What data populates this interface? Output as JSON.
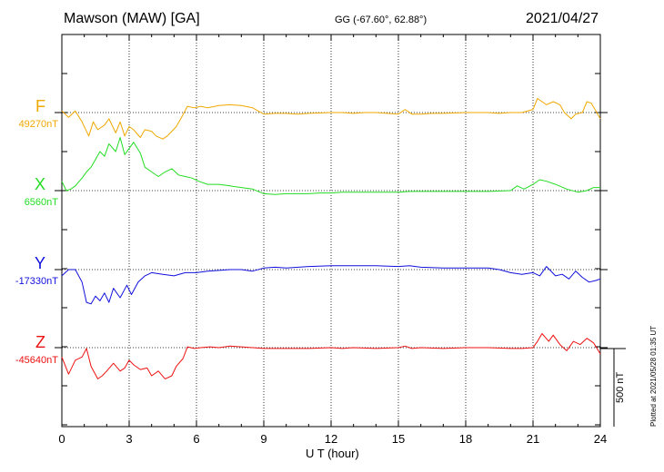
{
  "header": {
    "station": "Mawson (MAW)  [GA]",
    "coords": "GG (-67.60°,  62.88°)",
    "date": "2021/04/27"
  },
  "components": [
    {
      "name": "F",
      "base": "49270nT",
      "color": "#f0a800"
    },
    {
      "name": "X",
      "base": "6560nT",
      "color": "#22dd22"
    },
    {
      "name": "Y",
      "base": "-17330nT",
      "color": "#1010dd"
    },
    {
      "name": "Z",
      "base": "-45640nT",
      "color": "#ee1111"
    }
  ],
  "scale_bar": "500 nT",
  "plotted_note": "Plotted at 2021/05/28 01:35 UT",
  "chart_data": {
    "type": "line",
    "title": "Mawson (MAW)  [GA]",
    "xlabel": "U T (hour)",
    "ylabel": "",
    "xlim": [
      0,
      24
    ],
    "x_ticks": [
      0,
      3,
      6,
      9,
      12,
      15,
      18,
      21,
      24
    ],
    "scale_nT": 500,
    "grid": "dotted vertical every 3 h, dotted baseline per component",
    "series": [
      {
        "name": "F",
        "baseline_nT": 49270,
        "color": "#f0a800",
        "points": [
          [
            0,
            10
          ],
          [
            0.3,
            -30
          ],
          [
            0.6,
            10
          ],
          [
            0.9,
            -60
          ],
          [
            1.2,
            -150
          ],
          [
            1.4,
            -60
          ],
          [
            1.6,
            -110
          ],
          [
            1.9,
            -80
          ],
          [
            2.1,
            -40
          ],
          [
            2.4,
            -130
          ],
          [
            2.6,
            -60
          ],
          [
            2.8,
            -150
          ],
          [
            3.0,
            -90
          ],
          [
            3.2,
            -110
          ],
          [
            3.5,
            -160
          ],
          [
            3.7,
            -110
          ],
          [
            4.0,
            -120
          ],
          [
            4.2,
            -150
          ],
          [
            4.5,
            -170
          ],
          [
            4.7,
            -150
          ],
          [
            4.9,
            -120
          ],
          [
            5.1,
            -90
          ],
          [
            5.3,
            -40
          ],
          [
            5.6,
            40
          ],
          [
            5.9,
            30
          ],
          [
            6.2,
            40
          ],
          [
            6.5,
            30
          ],
          [
            7.0,
            45
          ],
          [
            7.5,
            50
          ],
          [
            8.0,
            45
          ],
          [
            8.5,
            30
          ],
          [
            9.0,
            -10
          ],
          [
            9.5,
            -5
          ],
          [
            10.0,
            -5
          ],
          [
            10.5,
            -10
          ],
          [
            11.0,
            -5
          ],
          [
            12.0,
            0
          ],
          [
            12.5,
            0
          ],
          [
            13.0,
            -5
          ],
          [
            13.5,
            0
          ],
          [
            14.0,
            0
          ],
          [
            14.5,
            -5
          ],
          [
            15.0,
            -10
          ],
          [
            15.3,
            20
          ],
          [
            15.6,
            -10
          ],
          [
            16.0,
            -10
          ],
          [
            16.5,
            -5
          ],
          [
            17.0,
            -5
          ],
          [
            18.0,
            0
          ],
          [
            19.0,
            0
          ],
          [
            19.5,
            -5
          ],
          [
            20.0,
            0
          ],
          [
            20.5,
            0
          ],
          [
            21.0,
            20
          ],
          [
            21.2,
            90
          ],
          [
            21.4,
            70
          ],
          [
            21.6,
            50
          ],
          [
            21.9,
            70
          ],
          [
            22.2,
            50
          ],
          [
            22.4,
            0
          ],
          [
            22.7,
            -40
          ],
          [
            22.9,
            -10
          ],
          [
            23.2,
            0
          ],
          [
            23.4,
            70
          ],
          [
            23.6,
            60
          ],
          [
            23.8,
            10
          ],
          [
            24.0,
            -40
          ]
        ]
      },
      {
        "name": "X",
        "baseline_nT": 6560,
        "color": "#22dd22",
        "points": [
          [
            0,
            60
          ],
          [
            0.2,
            0
          ],
          [
            0.4,
            10
          ],
          [
            0.6,
            30
          ],
          [
            0.9,
            80
          ],
          [
            1.1,
            120
          ],
          [
            1.3,
            150
          ],
          [
            1.5,
            200
          ],
          [
            1.7,
            250
          ],
          [
            1.9,
            220
          ],
          [
            2.1,
            300
          ],
          [
            2.4,
            250
          ],
          [
            2.6,
            340
          ],
          [
            2.8,
            230
          ],
          [
            3.0,
            270
          ],
          [
            3.2,
            310
          ],
          [
            3.5,
            240
          ],
          [
            3.7,
            150
          ],
          [
            4.0,
            120
          ],
          [
            4.3,
            90
          ],
          [
            4.6,
            120
          ],
          [
            4.9,
            140
          ],
          [
            5.2,
            100
          ],
          [
            5.5,
            90
          ],
          [
            5.8,
            80
          ],
          [
            6.1,
            60
          ],
          [
            6.5,
            40
          ],
          [
            7.0,
            40
          ],
          [
            7.5,
            30
          ],
          [
            8.0,
            20
          ],
          [
            8.5,
            10
          ],
          [
            9.0,
            -20
          ],
          [
            9.5,
            -25
          ],
          [
            10.0,
            -20
          ],
          [
            10.5,
            -20
          ],
          [
            11.0,
            -20
          ],
          [
            11.5,
            -15
          ],
          [
            12.0,
            -15
          ],
          [
            12.5,
            -10
          ],
          [
            13.0,
            -10
          ],
          [
            14.0,
            -10
          ],
          [
            15.0,
            -10
          ],
          [
            15.5,
            -5
          ],
          [
            16.0,
            -5
          ],
          [
            17.0,
            -5
          ],
          [
            18.0,
            -5
          ],
          [
            19.0,
            -5
          ],
          [
            20.0,
            0
          ],
          [
            20.3,
            30
          ],
          [
            20.6,
            10
          ],
          [
            21.0,
            40
          ],
          [
            21.3,
            70
          ],
          [
            21.6,
            60
          ],
          [
            22.0,
            40
          ],
          [
            22.5,
            10
          ],
          [
            23.0,
            -10
          ],
          [
            23.4,
            0
          ],
          [
            23.7,
            20
          ],
          [
            24.0,
            20
          ]
        ]
      },
      {
        "name": "Y",
        "baseline_nT": -17330,
        "color": "#1010dd",
        "points": [
          [
            0,
            -40
          ],
          [
            0.3,
            0
          ],
          [
            0.6,
            0
          ],
          [
            0.9,
            -80
          ],
          [
            1.1,
            -210
          ],
          [
            1.3,
            -220
          ],
          [
            1.5,
            -170
          ],
          [
            1.7,
            -200
          ],
          [
            1.9,
            -150
          ],
          [
            2.1,
            -210
          ],
          [
            2.3,
            -120
          ],
          [
            2.6,
            -180
          ],
          [
            2.9,
            -100
          ],
          [
            3.1,
            -160
          ],
          [
            3.4,
            -80
          ],
          [
            3.7,
            -40
          ],
          [
            4.0,
            -20
          ],
          [
            4.5,
            -30
          ],
          [
            5.0,
            -40
          ],
          [
            5.5,
            -20
          ],
          [
            6.0,
            -20
          ],
          [
            6.5,
            -10
          ],
          [
            7.0,
            -5
          ],
          [
            7.5,
            0
          ],
          [
            8.0,
            0
          ],
          [
            8.5,
            -10
          ],
          [
            9.0,
            10
          ],
          [
            9.5,
            15
          ],
          [
            10.0,
            10
          ],
          [
            11.0,
            20
          ],
          [
            12.0,
            25
          ],
          [
            13.0,
            25
          ],
          [
            14.0,
            25
          ],
          [
            15.0,
            20
          ],
          [
            15.5,
            25
          ],
          [
            16.0,
            15
          ],
          [
            17.0,
            10
          ],
          [
            18.0,
            10
          ],
          [
            19.0,
            10
          ],
          [
            19.5,
            0
          ],
          [
            20.0,
            -20
          ],
          [
            20.5,
            -30
          ],
          [
            21.0,
            -20
          ],
          [
            21.3,
            -40
          ],
          [
            21.6,
            20
          ],
          [
            22.0,
            -40
          ],
          [
            22.3,
            -30
          ],
          [
            22.6,
            -60
          ],
          [
            22.9,
            -10
          ],
          [
            23.2,
            -50
          ],
          [
            23.5,
            -80
          ],
          [
            23.8,
            -70
          ],
          [
            24.0,
            -60
          ]
        ]
      },
      {
        "name": "Z",
        "baseline_nT": -45640,
        "color": "#ee1111",
        "points": [
          [
            0,
            -60
          ],
          [
            0.3,
            -170
          ],
          [
            0.6,
            -80
          ],
          [
            0.9,
            -60
          ],
          [
            1.1,
            -5
          ],
          [
            1.3,
            -120
          ],
          [
            1.6,
            -200
          ],
          [
            1.8,
            -180
          ],
          [
            2.0,
            -150
          ],
          [
            2.3,
            -100
          ],
          [
            2.6,
            -150
          ],
          [
            2.8,
            -130
          ],
          [
            3.0,
            -80
          ],
          [
            3.2,
            -110
          ],
          [
            3.5,
            -140
          ],
          [
            3.8,
            -130
          ],
          [
            4.0,
            -180
          ],
          [
            4.3,
            -150
          ],
          [
            4.6,
            -200
          ],
          [
            4.9,
            -180
          ],
          [
            5.1,
            -120
          ],
          [
            5.4,
            -70
          ],
          [
            5.6,
            5
          ],
          [
            5.9,
            -5
          ],
          [
            6.2,
            0
          ],
          [
            6.6,
            5
          ],
          [
            7.0,
            0
          ],
          [
            7.5,
            10
          ],
          [
            8.0,
            5
          ],
          [
            8.5,
            0
          ],
          [
            9.0,
            -5
          ],
          [
            9.5,
            -5
          ],
          [
            10.0,
            -5
          ],
          [
            11.0,
            -5
          ],
          [
            12.0,
            0
          ],
          [
            12.5,
            -5
          ],
          [
            13.0,
            0
          ],
          [
            14.0,
            -5
          ],
          [
            15.0,
            0
          ],
          [
            15.3,
            10
          ],
          [
            15.6,
            -5
          ],
          [
            16.0,
            0
          ],
          [
            17.0,
            -5
          ],
          [
            18.0,
            0
          ],
          [
            19.0,
            0
          ],
          [
            20.0,
            -5
          ],
          [
            20.5,
            -5
          ],
          [
            21.0,
            0
          ],
          [
            21.2,
            40
          ],
          [
            21.4,
            90
          ],
          [
            21.7,
            40
          ],
          [
            21.9,
            80
          ],
          [
            22.2,
            20
          ],
          [
            22.5,
            -20
          ],
          [
            22.8,
            40
          ],
          [
            23.1,
            20
          ],
          [
            23.4,
            60
          ],
          [
            23.7,
            30
          ],
          [
            24.0,
            -40
          ]
        ]
      }
    ]
  }
}
